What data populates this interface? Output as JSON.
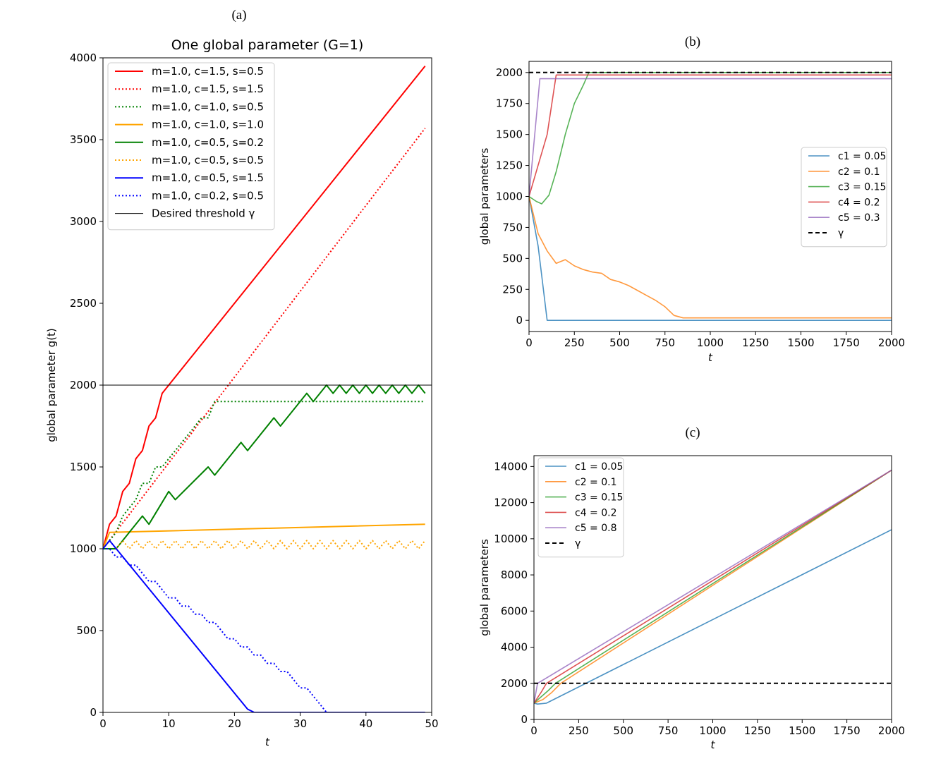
{
  "chart_data": [
    {
      "panel": "(a)",
      "type": "line",
      "title": "One global parameter (G=1)",
      "xlabel": "t",
      "ylabel": "global parameter g(t)",
      "xlim": [
        0,
        50
      ],
      "ylim": [
        0,
        4000
      ],
      "xticks": [
        0,
        10,
        20,
        30,
        40,
        50
      ],
      "yticks": [
        0,
        500,
        1000,
        1500,
        2000,
        2500,
        3000,
        3500,
        4000
      ],
      "legend_position": "upper-left",
      "threshold": 2000,
      "series": [
        {
          "name": "m=1.0, c=1.5, s=0.5",
          "color": "#ff0000",
          "style": "solid",
          "points": [
            [
              0,
              1000
            ],
            [
              1,
              1150
            ],
            [
              2,
              1200
            ],
            [
              3,
              1350
            ],
            [
              4,
              1400
            ],
            [
              5,
              1550
            ],
            [
              6,
              1600
            ],
            [
              7,
              1750
            ],
            [
              8,
              1800
            ],
            [
              9,
              1950
            ],
            [
              49,
              3950
            ]
          ]
        },
        {
          "name": "m=1.0, c=1.5, s=1.5",
          "color": "#ff0000",
          "style": "dotted",
          "points": [
            [
              0,
              1000
            ],
            [
              49,
              3570
            ]
          ]
        },
        {
          "name": "m=1.0, c=1.0, s=0.5",
          "color": "#008000",
          "style": "dotted",
          "points": [
            [
              0,
              1000
            ],
            [
              1,
              1050
            ],
            [
              2,
              1100
            ],
            [
              3,
              1200
            ],
            [
              4,
              1250
            ],
            [
              5,
              1300
            ],
            [
              6,
              1400
            ],
            [
              7,
              1400
            ],
            [
              8,
              1500
            ],
            [
              9,
              1500
            ],
            [
              10,
              1550
            ],
            [
              11,
              1600
            ],
            [
              12,
              1650
            ],
            [
              13,
              1700
            ],
            [
              14,
              1750
            ],
            [
              15,
              1800
            ],
            [
              16,
              1800
            ],
            [
              17,
              1900
            ],
            [
              49,
              1900
            ]
          ]
        },
        {
          "name": "m=1.0, c=1.0, s=1.0",
          "color": "#ffa500",
          "style": "solid",
          "points": [
            [
              0,
              1000
            ],
            [
              1,
              1100
            ],
            [
              49,
              1150
            ]
          ]
        },
        {
          "name": "m=1.0, c=0.5, s=0.2",
          "color": "#008000",
          "style": "solid",
          "points": [
            [
              0,
              1000
            ],
            [
              2,
              1000
            ],
            [
              6,
              1200
            ],
            [
              7,
              1150
            ],
            [
              10,
              1350
            ],
            [
              11,
              1300
            ],
            [
              16,
              1500
            ],
            [
              17,
              1450
            ],
            [
              21,
              1650
            ],
            [
              22,
              1600
            ],
            [
              26,
              1800
            ],
            [
              27,
              1750
            ],
            [
              31,
              1950
            ],
            [
              32,
              1900
            ],
            [
              34,
              2000
            ],
            [
              35,
              1950
            ],
            [
              36,
              2000
            ],
            [
              37,
              1950
            ],
            [
              38,
              2000
            ],
            [
              39,
              1950
            ],
            [
              40,
              2000
            ],
            [
              41,
              1950
            ],
            [
              42,
              2000
            ],
            [
              43,
              1950
            ],
            [
              44,
              2000
            ],
            [
              45,
              1950
            ],
            [
              46,
              2000
            ],
            [
              47,
              1950
            ],
            [
              48,
              2000
            ],
            [
              49,
              1950
            ]
          ]
        },
        {
          "name": "m=1.0, c=0.5, s=0.5",
          "color": "#ffa500",
          "style": "dotted",
          "points": [
            [
              0,
              1000
            ],
            [
              1,
              1050
            ],
            [
              2,
              1000
            ],
            [
              3,
              1050
            ],
            [
              4,
              1000
            ],
            [
              5,
              1050
            ],
            [
              6,
              1000
            ],
            [
              7,
              1050
            ],
            [
              8,
              1000
            ],
            [
              9,
              1050
            ],
            [
              10,
              1000
            ],
            [
              11,
              1050
            ],
            [
              12,
              1000
            ],
            [
              13,
              1050
            ],
            [
              14,
              1000
            ],
            [
              15,
              1050
            ],
            [
              16,
              1000
            ],
            [
              17,
              1050
            ],
            [
              18,
              1000
            ],
            [
              19,
              1050
            ],
            [
              20,
              1000
            ],
            [
              21,
              1050
            ],
            [
              22,
              1000
            ],
            [
              23,
              1050
            ],
            [
              24,
              1000
            ],
            [
              25,
              1050
            ],
            [
              26,
              1000
            ],
            [
              27,
              1050
            ],
            [
              28,
              1000
            ],
            [
              29,
              1050
            ],
            [
              30,
              1000
            ],
            [
              31,
              1050
            ],
            [
              32,
              1000
            ],
            [
              33,
              1050
            ],
            [
              34,
              1000
            ],
            [
              35,
              1050
            ],
            [
              36,
              1000
            ],
            [
              37,
              1050
            ],
            [
              38,
              1000
            ],
            [
              39,
              1050
            ],
            [
              40,
              1000
            ],
            [
              41,
              1050
            ],
            [
              42,
              1000
            ],
            [
              43,
              1050
            ],
            [
              44,
              1000
            ],
            [
              45,
              1050
            ],
            [
              46,
              1000
            ],
            [
              47,
              1050
            ],
            [
              48,
              1000
            ],
            [
              49,
              1050
            ]
          ]
        },
        {
          "name": "m=1.0, c=0.5, s=1.5",
          "color": "#0000ff",
          "style": "solid",
          "points": [
            [
              0,
              1000
            ],
            [
              1,
              1050
            ],
            [
              22,
              20
            ],
            [
              23,
              0
            ],
            [
              49,
              0
            ]
          ]
        },
        {
          "name": "m=1.0, c=0.2, s=0.5",
          "color": "#0000ff",
          "style": "dotted",
          "points": [
            [
              0,
              1000
            ],
            [
              1,
              1000
            ],
            [
              2,
              950
            ],
            [
              3,
              950
            ],
            [
              4,
              900
            ],
            [
              5,
              900
            ],
            [
              6,
              850
            ],
            [
              7,
              800
            ],
            [
              8,
              800
            ],
            [
              9,
              750
            ],
            [
              10,
              700
            ],
            [
              11,
              700
            ],
            [
              12,
              650
            ],
            [
              13,
              650
            ],
            [
              14,
              600
            ],
            [
              15,
              600
            ],
            [
              16,
              550
            ],
            [
              17,
              550
            ],
            [
              18,
              500
            ],
            [
              19,
              450
            ],
            [
              20,
              450
            ],
            [
              21,
              400
            ],
            [
              22,
              400
            ],
            [
              23,
              350
            ],
            [
              24,
              350
            ],
            [
              25,
              300
            ],
            [
              26,
              300
            ],
            [
              27,
              250
            ],
            [
              28,
              250
            ],
            [
              29,
              200
            ],
            [
              30,
              150
            ],
            [
              31,
              150
            ],
            [
              32,
              100
            ],
            [
              33,
              50
            ],
            [
              34,
              0
            ],
            [
              49,
              0
            ]
          ]
        },
        {
          "name": "Desired threshold γ",
          "color": "#000000",
          "style": "thin",
          "points": [
            [
              0,
              2000
            ],
            [
              50,
              2000
            ]
          ]
        }
      ]
    },
    {
      "panel": "(b)",
      "type": "line",
      "xlabel": "t",
      "ylabel": "global parameters",
      "xlim": [
        0,
        2000
      ],
      "ylim": [
        -90,
        2090
      ],
      "xticks": [
        0,
        250,
        500,
        750,
        1000,
        1250,
        1500,
        1750,
        2000
      ],
      "yticks": [
        0,
        250,
        500,
        750,
        1000,
        1250,
        1500,
        1750,
        2000
      ],
      "legend_position": "center-right",
      "threshold": 2000,
      "series": [
        {
          "name": "c1 = 0.05",
          "color": "#1f77b4",
          "points": [
            [
              0,
              1000
            ],
            [
              50,
              600
            ],
            [
              100,
              0
            ],
            [
              2000,
              0
            ]
          ]
        },
        {
          "name": "c2 = 0.1",
          "color": "#ff7f0e",
          "points": [
            [
              0,
              1000
            ],
            [
              50,
              700
            ],
            [
              100,
              560
            ],
            [
              150,
              460
            ],
            [
              200,
              490
            ],
            [
              250,
              440
            ],
            [
              300,
              410
            ],
            [
              350,
              390
            ],
            [
              400,
              380
            ],
            [
              450,
              330
            ],
            [
              500,
              310
            ],
            [
              550,
              280
            ],
            [
              600,
              240
            ],
            [
              650,
              200
            ],
            [
              700,
              160
            ],
            [
              750,
              110
            ],
            [
              800,
              40
            ],
            [
              850,
              20
            ],
            [
              2000,
              20
            ]
          ]
        },
        {
          "name": "c3 = 0.15",
          "color": "#2ca02c",
          "points": [
            [
              0,
              1000
            ],
            [
              40,
              960
            ],
            [
              70,
              940
            ],
            [
              110,
              1010
            ],
            [
              150,
              1200
            ],
            [
              200,
              1500
            ],
            [
              250,
              1750
            ],
            [
              300,
              1900
            ],
            [
              330,
              2000
            ],
            [
              2000,
              2000
            ]
          ]
        },
        {
          "name": "c4 = 0.2",
          "color": "#d62728",
          "points": [
            [
              0,
              1000
            ],
            [
              60,
              1300
            ],
            [
              100,
              1500
            ],
            [
              150,
              1980
            ],
            [
              2000,
              1980
            ]
          ]
        },
        {
          "name": "c5 = 0.3",
          "color": "#9467bd",
          "points": [
            [
              0,
              1000
            ],
            [
              60,
              1950
            ],
            [
              2000,
              1950
            ]
          ]
        },
        {
          "name": "γ",
          "color": "#000000",
          "style": "dashed",
          "points": [
            [
              0,
              2000
            ],
            [
              2000,
              2000
            ]
          ]
        }
      ]
    },
    {
      "panel": "(c)",
      "type": "line",
      "xlabel": "t",
      "ylabel": "global parameters",
      "xlim": [
        0,
        2000
      ],
      "ylim": [
        0,
        14600
      ],
      "xticks": [
        0,
        250,
        500,
        750,
        1000,
        1250,
        1500,
        1750,
        2000
      ],
      "yticks": [
        0,
        2000,
        4000,
        6000,
        8000,
        10000,
        12000,
        14000
      ],
      "legend_position": "upper-left",
      "threshold": 2000,
      "series": [
        {
          "name": "c1 = 0.05",
          "color": "#1f77b4",
          "points": [
            [
              0,
              900
            ],
            [
              20,
              850
            ],
            [
              70,
              900
            ],
            [
              2000,
              10500
            ]
          ]
        },
        {
          "name": "c2 = 0.1",
          "color": "#ff7f0e",
          "points": [
            [
              0,
              900
            ],
            [
              50,
              1100
            ],
            [
              100,
              1500
            ],
            [
              150,
              2000
            ],
            [
              2000,
              13800
            ]
          ]
        },
        {
          "name": "c3 = 0.15",
          "color": "#2ca02c",
          "points": [
            [
              0,
              900
            ],
            [
              80,
              1600
            ],
            [
              120,
              2000
            ],
            [
              2000,
              13800
            ]
          ]
        },
        {
          "name": "c4 = 0.2",
          "color": "#d62728",
          "points": [
            [
              0,
              900
            ],
            [
              40,
              1500
            ],
            [
              70,
              2000
            ],
            [
              2000,
              13800
            ]
          ]
        },
        {
          "name": "c5 = 0.8",
          "color": "#9467bd",
          "points": [
            [
              0,
              900
            ],
            [
              20,
              2000
            ],
            [
              2000,
              13800
            ]
          ]
        },
        {
          "name": "γ",
          "color": "#000000",
          "style": "dashed",
          "points": [
            [
              0,
              2000
            ],
            [
              2000,
              2000
            ]
          ]
        }
      ]
    }
  ]
}
